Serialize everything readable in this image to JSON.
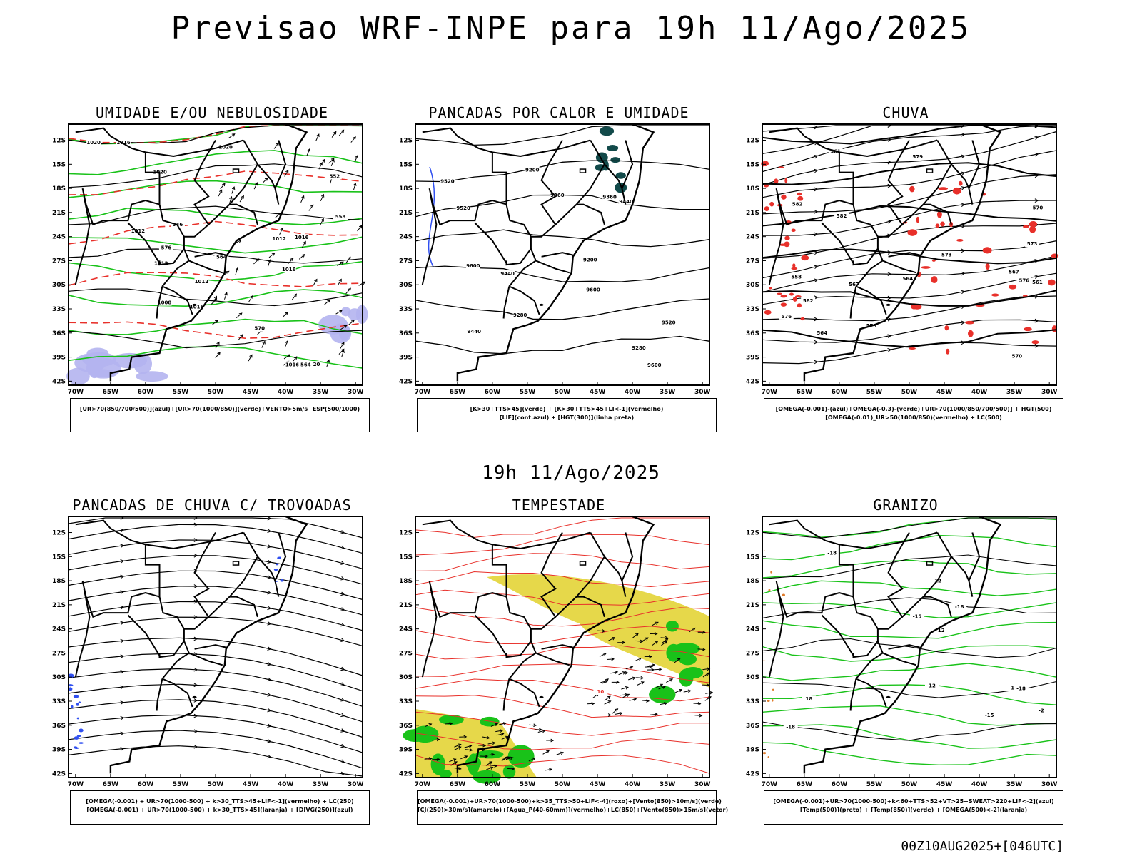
{
  "title": "Previsao WRF-INPE  para 19h 11/Ago/2025",
  "mid_title": "19h 11/Ago/2025",
  "footer": "00Z10AUG2025+[046UTC]",
  "axes": {
    "lat_labels": [
      "12S",
      "15S",
      "18S",
      "21S",
      "24S",
      "27S",
      "30S",
      "33S",
      "36S",
      "39S",
      "42S"
    ],
    "lon_labels": [
      "70W",
      "65W",
      "60W",
      "55W",
      "50W",
      "45W",
      "40W",
      "35W",
      "30W"
    ]
  },
  "colors": {
    "red": "#e8302a",
    "green": "#19c219",
    "blue": "#2f4ff0",
    "lavender": "#b4b4f0",
    "yellow": "#e6d84a",
    "dark_teal": "#124a4a",
    "orange": "#e07b2a"
  },
  "panels": [
    {
      "title": "UMIDADE E/OU NEBULOSIDADE",
      "legend": [
        "[UR>70(850/700/500)](azul)+[UR>70(1000/850)](verde)+VENTO>5m/s+ESP(500/1000)"
      ],
      "labels": [
        "1012",
        "1012",
        "1016",
        "1016",
        "1020",
        "1020",
        "1016",
        "1012",
        "1008",
        "1012",
        "1016",
        "1020",
        "1020",
        "1016",
        "576",
        "570",
        "564",
        "558",
        "552",
        "546",
        "564"
      ]
    },
    {
      "title": "PANCADAS POR CALOR E UMIDADE",
      "legend": [
        "[K>30+TTS>45](verde) + [K>30+TTS>45+LI<-1](vermelho)",
        "[LIF](cont.azul) + [HGT(300)](linha preta)"
      ],
      "labels": [
        "9600",
        "9600",
        "9600",
        "9520",
        "9520",
        "9520",
        "9440",
        "9440",
        "9440",
        "9360",
        "9360",
        "9280",
        "9280",
        "9200",
        "9200"
      ]
    },
    {
      "title": "CHUVA",
      "legend": [
        "[OMEGA(-0.001)-(azul)+OMEGA(-0.3)-(verde)+UR>70(1000/850/700/500)] + HGT(500)",
        "[OMEGA(-0.01)_UR>50(1000/850)(vermelho) + LC(500)"
      ],
      "labels": [
        "582",
        "582",
        "582",
        "579",
        "576",
        "573",
        "570",
        "567",
        "564",
        "561",
        "579",
        "576",
        "573",
        "570",
        "567",
        "564",
        "561",
        "558"
      ]
    },
    {
      "title": "PANCADAS DE CHUVA C/ TROVOADAS",
      "legend": [
        "[OMEGA(-0.001) + UR>70(1000-500) + k>30_TTS>45+LIF<-1](vermelho) + LC(250)",
        "[OMEGA(-0.001) + UR>70(1000-500) + k>30_TTS>45](laranja) + [DIVG(250)](azul)"
      ],
      "labels": []
    },
    {
      "title": "TEMPESTADE",
      "legend": [
        "[OMEGA(-0.001)+UR>70(1000-500)+k>35_TTS>50+LIF<-4](roxo)+[Vento(850)>10m/s](verde)",
        "[CJ(250)>30m/s](amarelo)+[Agua_P(40-60mm)](vermelho)+LC(850)+[Vento(850)>15m/s](vetor)"
      ],
      "labels": [
        "10"
      ]
    },
    {
      "title": "GRANIZO",
      "legend": [
        "[OMEGA(-0.001)+UR>70(1000-500)+k<60+TTS>52+VT>25+SWEAT>220+LIF<-2](azul)",
        "[Temp(500)](preto) + [Temp(850)](verde) + [OMEGA(500)<-2](laranja)"
      ],
      "labels": [
        "18",
        "12",
        "12",
        "-2",
        "-12",
        "-15",
        "-15",
        "-18",
        "-18",
        "-18",
        "-18",
        "12"
      ]
    }
  ]
}
